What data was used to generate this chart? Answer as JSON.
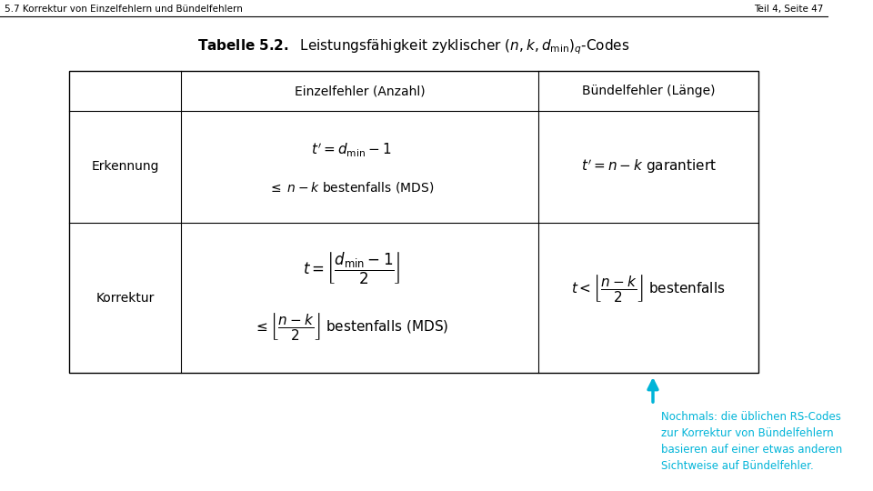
{
  "header_left": "5.7 Korrektur von Einzelfehlern und Bündelfehlern",
  "header_right": "Teil 4, Seite 47",
  "bg_color": "#ffffff",
  "header_line_color": "#000000",
  "table_title": "Tabelle 5.2.  Leistungsfähigkeit zyklischer $(n, k, d_{\\min})_q$-Codes",
  "col_headers": [
    "",
    "Einzelfehler (Anzahl)",
    "Bündelfehler (Länge)"
  ],
  "row1_label": "Erkennung",
  "row1_col2_line1": "$t' = d_{\\min} - 1$",
  "row1_col2_line2": "$\\leq\\; n - k$ bestenfalls (MDS)",
  "row1_col3": "$t' = n - k$ garantiert",
  "row2_label": "Korrektur",
  "row2_col2_line1": "$t = \\left\\lfloor \\dfrac{d_{\\min} - 1}{2} \\right\\rfloor$",
  "row2_col2_line2": "$\\leq \\left\\lfloor \\dfrac{n - k}{2} \\right\\rfloor$ bestenfalls (MDS)",
  "row2_col3": "$t < \\left\\lfloor \\dfrac{n - k}{2} \\right\\rfloor$ bestenfalls",
  "arrow_color": "#00b4d8",
  "annotation_color": "#00b4d8",
  "annotation_text": "Nochmals: die üblichen RS-Codes\nzur Korrektur von Bündelfehlern\nbasieren auf einer etwas anderen\nSichtweise auf Bündelfehler."
}
